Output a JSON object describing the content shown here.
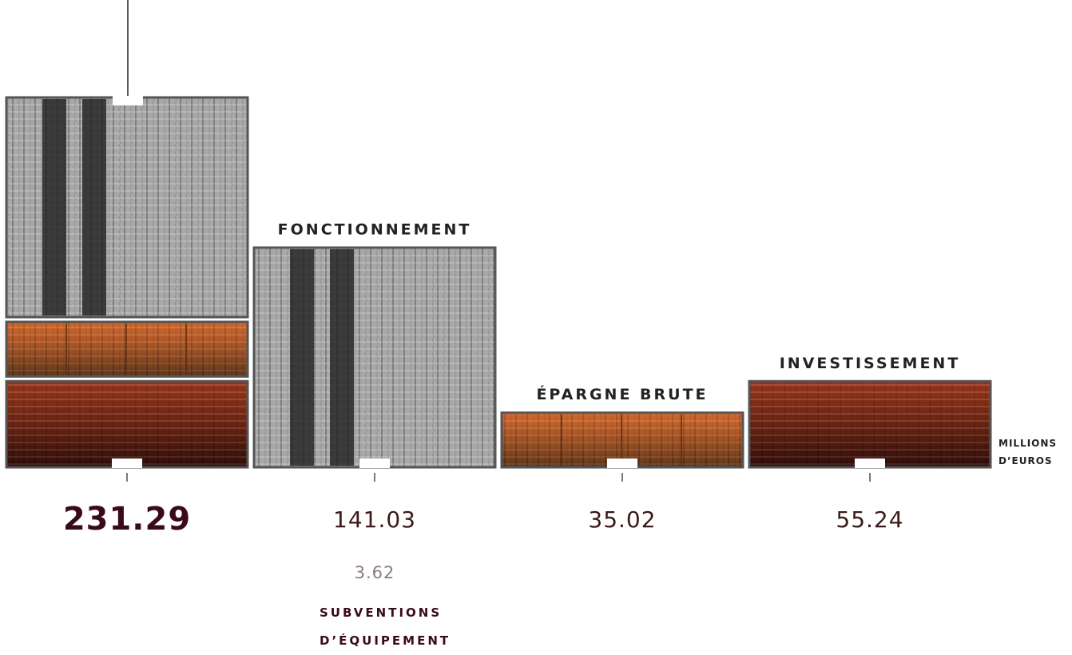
{
  "chart_data": {
    "type": "bar",
    "categories": [
      null,
      "FONCTIONNEMENT",
      "ÉPARGNE BRUTE",
      "INVESTISSEMENT"
    ],
    "values": [
      231.29,
      141.03,
      35.02,
      55.24
    ],
    "colors": [
      "#555555",
      "#a8a8a8",
      "#b5652e",
      "#5a1812"
    ],
    "unit": "MILLIONS D’EUROS",
    "annotation": {
      "value": 3.62,
      "label": "SUBVENTIONS D’ÉQUIPEMENT"
    }
  }
}
